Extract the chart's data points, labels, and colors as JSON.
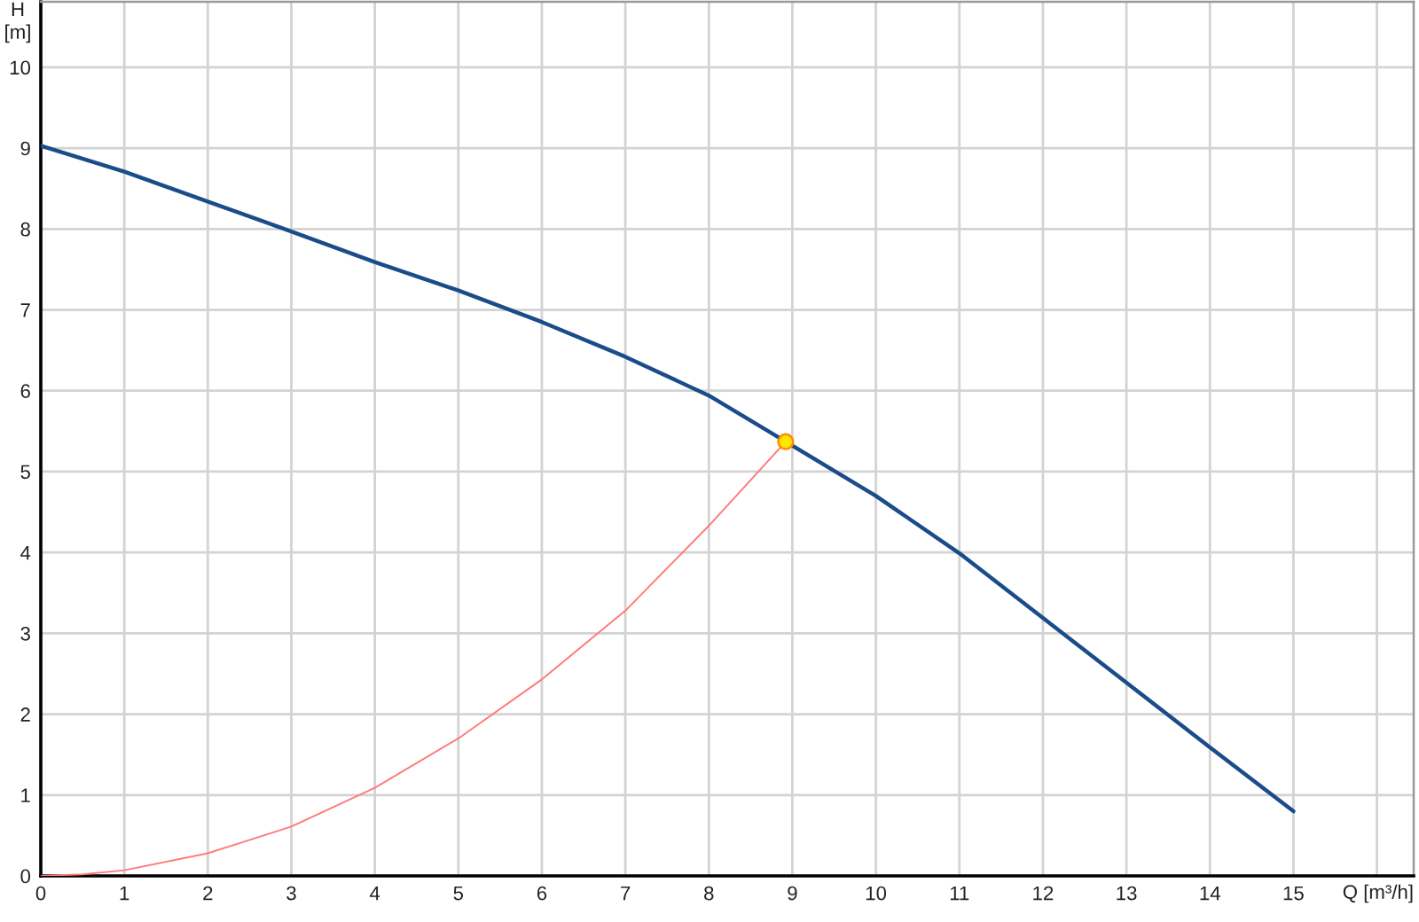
{
  "chart_data": {
    "type": "line",
    "xlabel": "Q [m³/h]",
    "ylabel": "H\n[m]",
    "xlim": [
      0,
      16.44
    ],
    "ylim": [
      0,
      10.81
    ],
    "xticks": [
      0,
      1,
      2,
      3,
      4,
      5,
      6,
      7,
      8,
      9,
      10,
      11,
      12,
      13,
      14,
      15,
      {
        "value": 16,
        "label": null
      }
    ],
    "yticks": [
      0,
      1,
      2,
      3,
      4,
      5,
      6,
      7,
      8,
      9,
      10
    ],
    "grid": true,
    "series": [
      {
        "color": "#1b4c8a",
        "x": [
          0,
          1,
          2,
          3,
          4,
          5,
          6,
          7,
          8,
          8.92,
          10,
          11,
          12,
          13,
          14,
          15
        ],
        "values": [
          9.03,
          8.71,
          8.34,
          7.97,
          7.59,
          7.24,
          6.85,
          6.42,
          5.94,
          5.37,
          4.7,
          3.99,
          3.19,
          2.39,
          1.59,
          0.8
        ]
      },
      {
        "color": "#ff7a7a",
        "x": [
          0,
          0.5,
          1,
          2,
          3,
          4,
          5,
          6,
          7,
          8,
          8.92
        ],
        "values": [
          0,
          0.02,
          0.07,
          0.28,
          0.61,
          1.09,
          1.7,
          2.43,
          3.28,
          4.33,
          5.37
        ]
      },
      {
        "type": "scatter",
        "marker": "circle",
        "color": "#ffe600",
        "x": [
          8.92
        ],
        "values": [
          5.37
        ]
      }
    ]
  }
}
